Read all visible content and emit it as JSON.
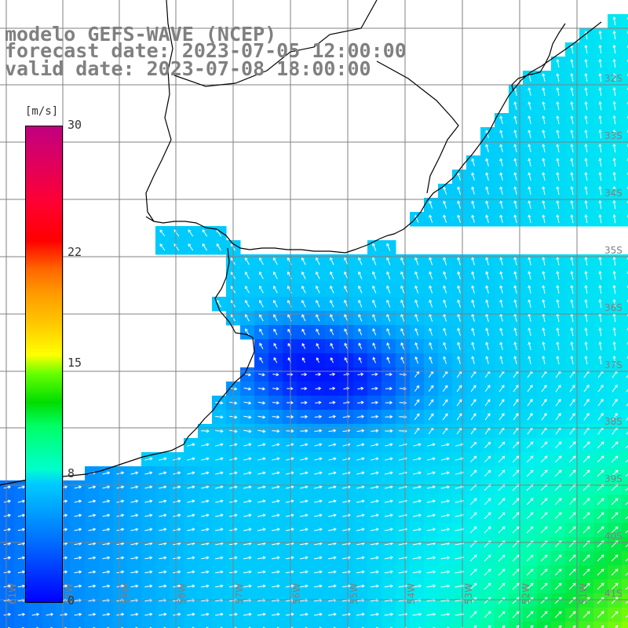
{
  "title": {
    "line1": "modelo GEFS-WAVE (NCEP)",
    "line2": "forecast date: 2023-07-05 12:00:00",
    "line3": "valid date: 2023-07-08 18:00:00"
  },
  "colorbar": {
    "unit": "[m/s]",
    "ticks": [
      "30",
      "22",
      "15",
      "8",
      "0"
    ],
    "tick_values": [
      30,
      22,
      15,
      8,
      0
    ],
    "colors": [
      "#0000ff",
      "#00ccff",
      "#00dd00",
      "#ffff00",
      "#ff0000",
      "#c00080"
    ]
  },
  "map": {
    "variable": "wind speed and direction",
    "land_color": "#ffffff",
    "coast_color": "#000000",
    "grid_color": "#808080",
    "lon_labels": [
      "61W",
      "60W",
      "59W",
      "58W",
      "57W",
      "56W",
      "55W",
      "54W",
      "53W",
      "52W",
      "51W"
    ],
    "lat_labels": [
      "32S",
      "33S",
      "34S",
      "35S",
      "36S",
      "37S",
      "38S",
      "39S",
      "40S",
      "41S"
    ]
  }
}
